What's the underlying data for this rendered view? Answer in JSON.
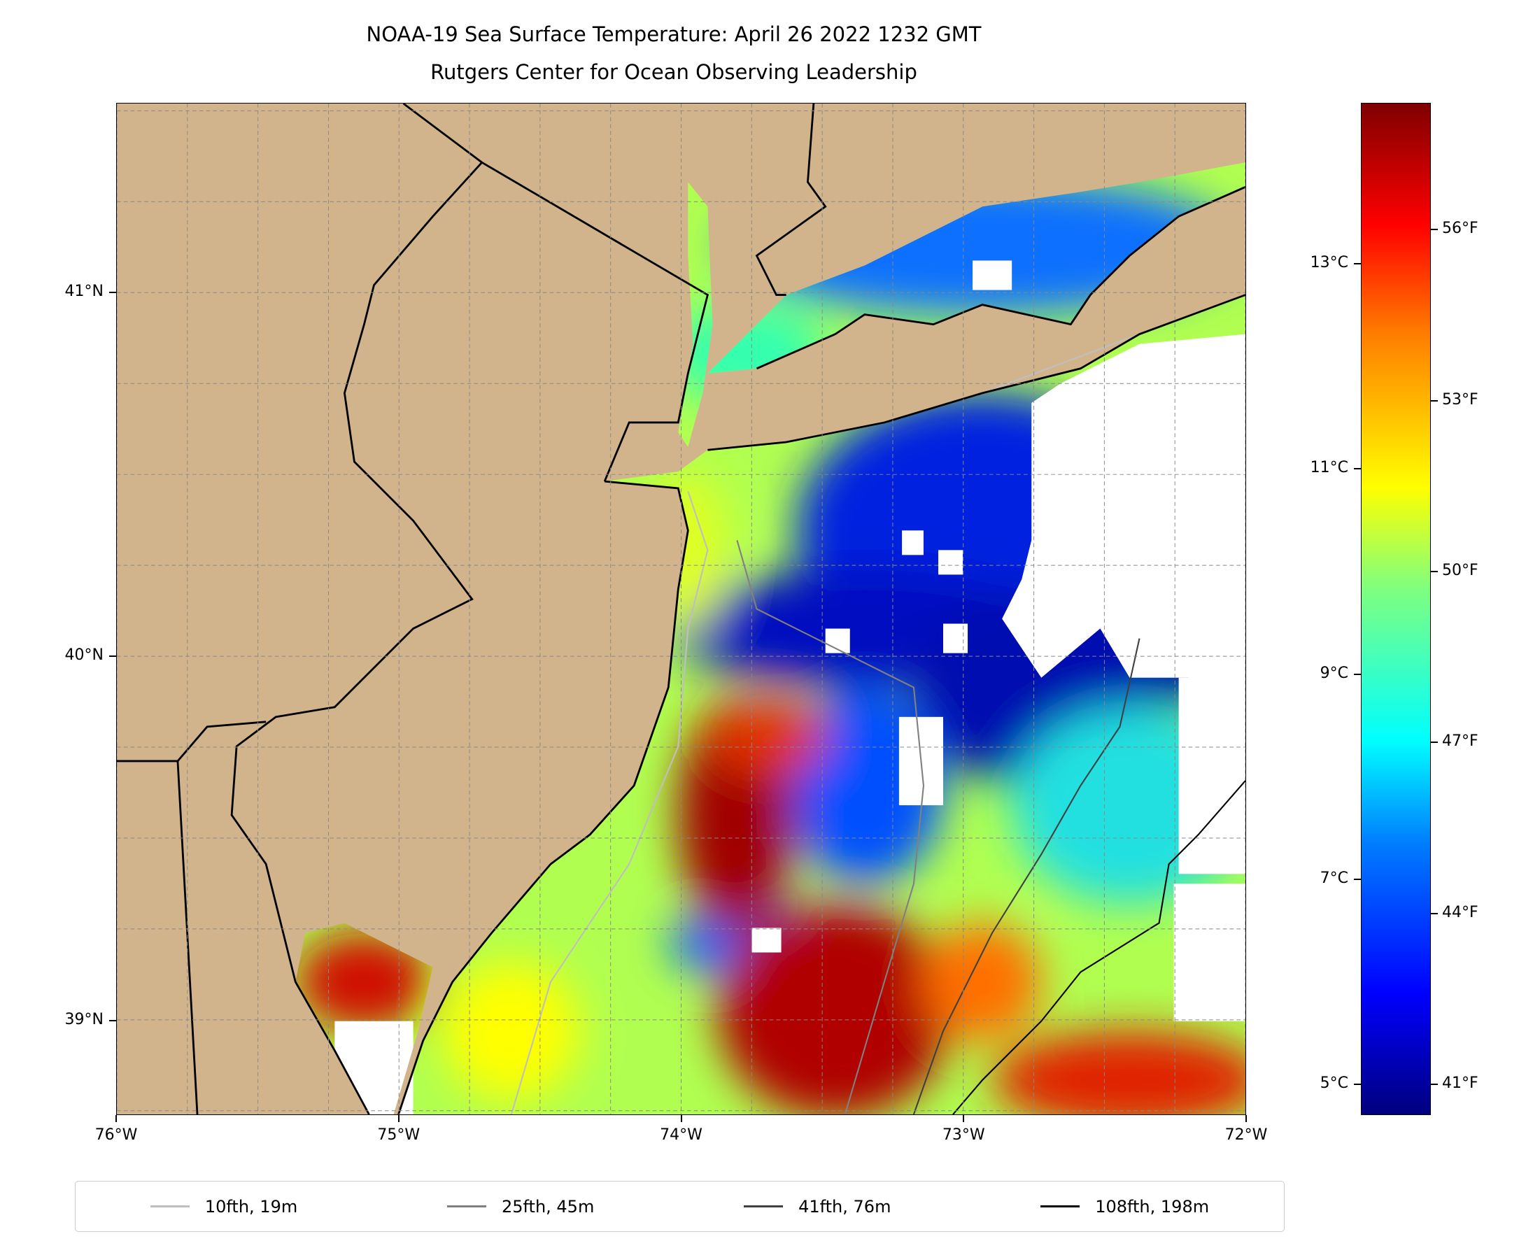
{
  "title": {
    "line1": "NOAA-19 Sea Surface Temperature: April 26 2022 1232 GMT",
    "line2": "Rutgers Center for Ocean Observing Leadership"
  },
  "map": {
    "lon_range": [
      -76,
      -72
    ],
    "lat_range": [
      38.74,
      41.52
    ],
    "lon_ticks": [
      {
        "v": -76,
        "label": "76°W"
      },
      {
        "v": -75,
        "label": "75°W"
      },
      {
        "v": -74,
        "label": "74°W"
      },
      {
        "v": -73,
        "label": "73°W"
      },
      {
        "v": -72,
        "label": "72°W"
      }
    ],
    "lat_ticks": [
      {
        "v": 41,
        "label": "41°N"
      },
      {
        "v": 40,
        "label": "40°N"
      },
      {
        "v": 39,
        "label": "39°N"
      }
    ],
    "grid_step_deg": 0.25,
    "land_color": "#d2b48c"
  },
  "colorbar": {
    "range_c": [
      4.7,
      14.57
    ],
    "c_ticks": [
      {
        "v": 5,
        "label": "5°C"
      },
      {
        "v": 7,
        "label": "7°C"
      },
      {
        "v": 9,
        "label": "9°C"
      },
      {
        "v": 11,
        "label": "11°C"
      },
      {
        "v": 13,
        "label": "13°C"
      }
    ],
    "f_ticks": [
      {
        "v": 41,
        "label": "41°F"
      },
      {
        "v": 44,
        "label": "44°F"
      },
      {
        "v": 47,
        "label": "47°F"
      },
      {
        "v": 50,
        "label": "50°F"
      },
      {
        "v": 53,
        "label": "53°F"
      },
      {
        "v": 56,
        "label": "56°F"
      }
    ],
    "colormap": "jet"
  },
  "legend": [
    {
      "label": "10fth, 19m",
      "color": "#bfbfbf"
    },
    {
      "label": "25fth, 45m",
      "color": "#808080"
    },
    {
      "label": "41fth, 76m",
      "color": "#404040"
    },
    {
      "label": "108fth, 198m",
      "color": "#000000"
    }
  ]
}
